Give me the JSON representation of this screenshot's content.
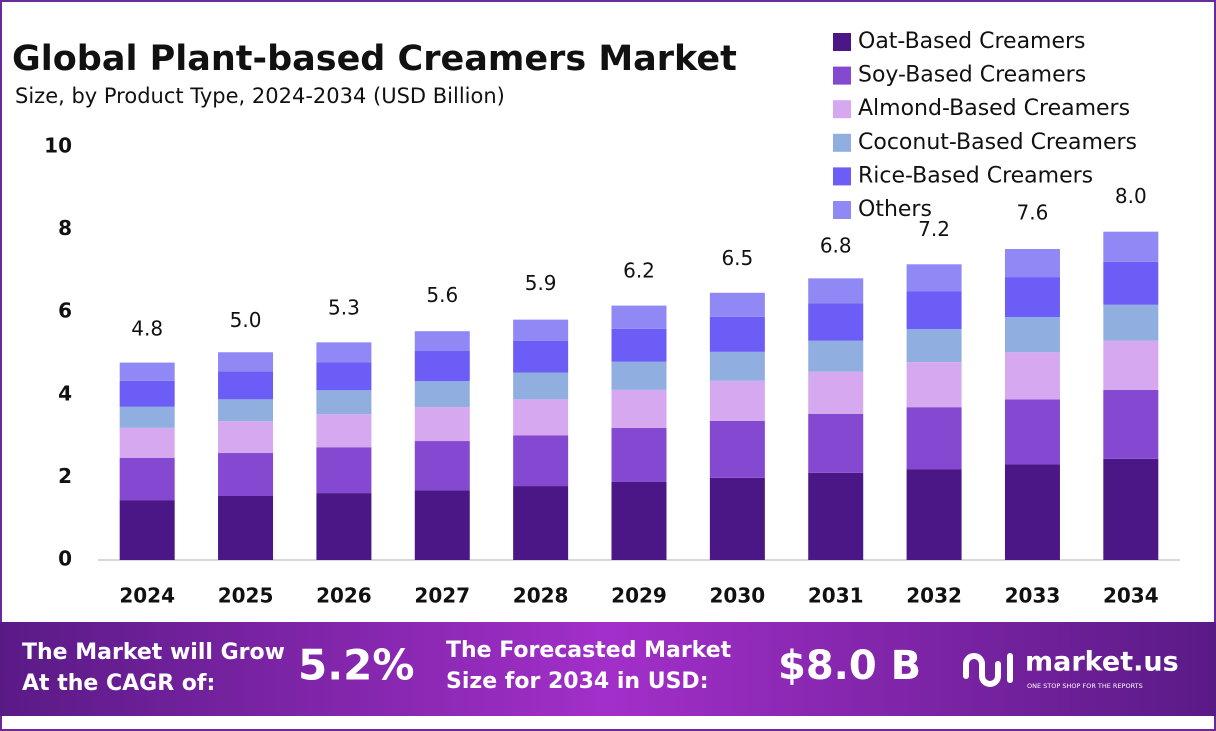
{
  "chart_data": {
    "type": "stacked_bar",
    "title": "Global Plant-based Creamers Market",
    "subtitle": "Size, by Product Type, 2024-2034 (USD Billion)",
    "categories": [
      "2024",
      "2025",
      "2026",
      "2027",
      "2028",
      "2029",
      "2030",
      "2031",
      "2032",
      "2033",
      "2034"
    ],
    "series": [
      {
        "name": "Oat-Based Creamers",
        "color": "#4b1786",
        "values": [
          1.45,
          1.55,
          1.62,
          1.69,
          1.79,
          1.89,
          1.99,
          2.11,
          2.2,
          2.32,
          2.45
        ]
      },
      {
        "name": "Soy-Based Creamers",
        "color": "#8548d0",
        "values": [
          1.02,
          1.04,
          1.11,
          1.19,
          1.23,
          1.31,
          1.38,
          1.43,
          1.5,
          1.57,
          1.67
        ]
      },
      {
        "name": "Almond-Based Creamers",
        "color": "#d5a8ef",
        "values": [
          0.73,
          0.77,
          0.8,
          0.82,
          0.87,
          0.92,
          0.97,
          1.02,
          1.09,
          1.14,
          1.19
        ]
      },
      {
        "name": "Coconut-Based Creamers",
        "color": "#90aee0",
        "values": [
          0.51,
          0.53,
          0.58,
          0.63,
          0.65,
          0.68,
          0.7,
          0.75,
          0.8,
          0.85,
          0.87
        ]
      },
      {
        "name": "Rice-Based Creamers",
        "color": "#6b5df5",
        "values": [
          0.63,
          0.68,
          0.68,
          0.73,
          0.77,
          0.8,
          0.85,
          0.9,
          0.92,
          0.97,
          1.04
        ]
      },
      {
        "name": "Others",
        "color": "#9088f5",
        "values": [
          0.44,
          0.46,
          0.48,
          0.48,
          0.51,
          0.56,
          0.58,
          0.61,
          0.65,
          0.68,
          0.73
        ]
      }
    ],
    "totals": {
      "values": [
        4.8,
        5.0,
        5.3,
        5.6,
        5.9,
        6.2,
        6.5,
        6.8,
        7.2,
        7.6,
        8.0
      ],
      "value_labels": [
        "4.8",
        "5.0",
        "5.3",
        "5.6",
        "5.9",
        "6.2",
        "6.5",
        "6.8",
        "7.2",
        "7.6",
        "8.0"
      ]
    },
    "ylim": [
      0,
      10
    ],
    "yticks": [
      0,
      2,
      4,
      6,
      8,
      10
    ],
    "grid": false,
    "legend": "top-right"
  },
  "footer": {
    "cagr_text": [
      "The Market will Grow",
      "At the CAGR of:"
    ],
    "cagr_value": "5.2%",
    "forecast_text": [
      "The Forecasted Market",
      "Size for 2034 in USD:"
    ],
    "forecast_value": "$8.0 B",
    "brand": "market.us",
    "tagline": "ONE STOP SHOP FOR THE REPORTS"
  }
}
